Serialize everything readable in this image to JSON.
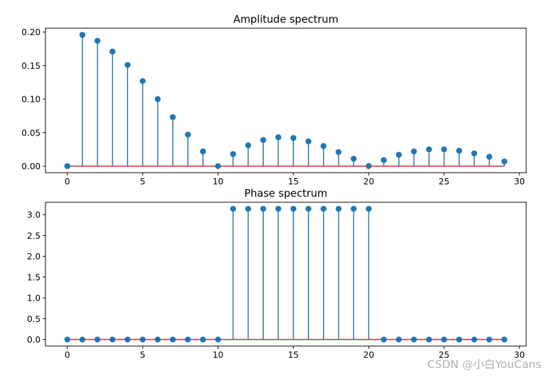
{
  "chart_data": [
    {
      "type": "stem",
      "title": "Amplitude spectrum",
      "xlim": [
        -1.45,
        30.45
      ],
      "ylim": [
        -0.0098,
        0.2058
      ],
      "xticks": [
        0,
        5,
        10,
        15,
        20,
        25,
        30
      ],
      "xtick_labels": [
        "0",
        "5",
        "10",
        "15",
        "20",
        "25",
        "30"
      ],
      "yticks": [
        0.0,
        0.05,
        0.1,
        0.15,
        0.2
      ],
      "ytick_labels": [
        "0.00",
        "0.05",
        "0.10",
        "0.15",
        "0.20"
      ],
      "x": [
        0,
        1,
        2,
        3,
        4,
        5,
        6,
        7,
        8,
        9,
        10,
        11,
        12,
        13,
        14,
        15,
        16,
        17,
        18,
        19,
        20,
        21,
        22,
        23,
        24,
        25,
        26,
        27,
        28,
        29
      ],
      "y": [
        0.0,
        0.196,
        0.187,
        0.171,
        0.151,
        0.127,
        0.1,
        0.073,
        0.047,
        0.022,
        0.0,
        0.018,
        0.031,
        0.039,
        0.043,
        0.042,
        0.037,
        0.03,
        0.021,
        0.011,
        0.0,
        0.009,
        0.017,
        0.022,
        0.025,
        0.025,
        0.023,
        0.019,
        0.014,
        0.007
      ],
      "colors": {
        "stem": "#1f77b4",
        "baseline": "#d62728"
      }
    },
    {
      "type": "stem",
      "title": "Phase spectrum",
      "xlim": [
        -1.45,
        30.45
      ],
      "ylim": [
        -0.157,
        3.299
      ],
      "xticks": [
        0,
        5,
        10,
        15,
        20,
        25,
        30
      ],
      "xtick_labels": [
        "0",
        "5",
        "10",
        "15",
        "20",
        "25",
        "30"
      ],
      "yticks": [
        0.0,
        0.5,
        1.0,
        1.5,
        2.0,
        2.5,
        3.0
      ],
      "ytick_labels": [
        "0.0",
        "0.5",
        "1.0",
        "1.5",
        "2.0",
        "2.5",
        "3.0"
      ],
      "x": [
        0,
        1,
        2,
        3,
        4,
        5,
        6,
        7,
        8,
        9,
        10,
        11,
        12,
        13,
        14,
        15,
        16,
        17,
        18,
        19,
        20,
        21,
        22,
        23,
        24,
        25,
        26,
        27,
        28,
        29
      ],
      "y": [
        0,
        0,
        0,
        0,
        0,
        0,
        0,
        0,
        0,
        0,
        0,
        3.1416,
        3.1416,
        3.1416,
        3.1416,
        3.1416,
        3.1416,
        3.1416,
        3.1416,
        3.1416,
        3.1416,
        0,
        0,
        0,
        0,
        0,
        0,
        0,
        0,
        0
      ],
      "colors": {
        "stem": "#1f77b4",
        "baseline": "#d62728"
      }
    }
  ],
  "watermark": "CSDN @小白YouCans"
}
